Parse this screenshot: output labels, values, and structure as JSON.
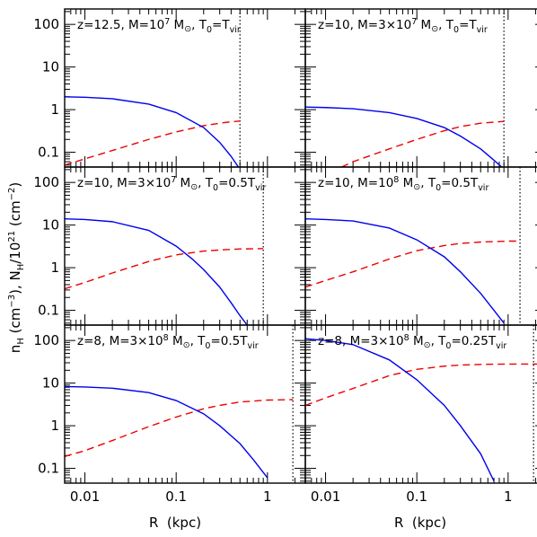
{
  "chart_data": {
    "type": "line",
    "layout": "3 rows x 2 columns, shared axes",
    "xlabel": "R  (kpc)",
    "ylabel": "n_H (cm^-3), N_H/10^21 (cm^-2)",
    "xscale": "log",
    "yscale": "log",
    "xlim": [
      0.006,
      2.6
    ],
    "ylim": [
      0.045,
      230
    ],
    "xticks": [
      "0.01",
      "0.1",
      "1"
    ],
    "yticks": [
      "0.1",
      "1",
      "10",
      "100"
    ],
    "series_styles": [
      {
        "key": "nH",
        "color": "#0000ee",
        "style": "solid"
      },
      {
        "key": "NH",
        "color": "#ee0000",
        "style": "dashed"
      }
    ],
    "panels": [
      {
        "title": {
          "pre": "z=12.5, M=10",
          "sup": "7",
          "mid": " M",
          "post": ", T",
          "tsub": "0",
          "teq": "=T",
          "vsub": "vir"
        },
        "rvir": 0.5,
        "nH": {
          "x": [
            0.006,
            0.01,
            0.02,
            0.05,
            0.1,
            0.2,
            0.3,
            0.4,
            0.48
          ],
          "y": [
            2.0,
            1.95,
            1.8,
            1.35,
            0.85,
            0.38,
            0.17,
            0.08,
            0.045
          ]
        },
        "NH": {
          "x": [
            0.006,
            0.01,
            0.02,
            0.05,
            0.1,
            0.2,
            0.3,
            0.4,
            0.5
          ],
          "y": [
            0.05,
            0.07,
            0.11,
            0.2,
            0.3,
            0.42,
            0.48,
            0.52,
            0.54
          ]
        }
      },
      {
        "title": {
          "pre": "z=10, M=3×10",
          "sup": "7",
          "mid": " M",
          "post": ", T",
          "tsub": "0",
          "teq": "=T",
          "vsub": "vir"
        },
        "rvir": 0.9,
        "nH": {
          "x": [
            0.006,
            0.01,
            0.02,
            0.05,
            0.1,
            0.2,
            0.3,
            0.5,
            0.7,
            0.85
          ],
          "y": [
            1.15,
            1.12,
            1.05,
            0.85,
            0.62,
            0.38,
            0.24,
            0.12,
            0.065,
            0.045
          ]
        },
        "NH": {
          "x": [
            0.015,
            0.02,
            0.05,
            0.1,
            0.2,
            0.3,
            0.5,
            0.9
          ],
          "y": [
            0.045,
            0.06,
            0.12,
            0.2,
            0.32,
            0.4,
            0.48,
            0.53
          ]
        }
      },
      {
        "title": {
          "pre": "z=10, M=3×10",
          "sup": "7",
          "mid": " M",
          "post": ", T",
          "tsub": "0",
          "teq": "=0.5T",
          "vsub": "vir"
        },
        "rvir": 0.9,
        "nH": {
          "x": [
            0.006,
            0.01,
            0.02,
            0.05,
            0.1,
            0.15,
            0.2,
            0.3,
            0.4,
            0.5,
            0.6
          ],
          "y": [
            14,
            13.5,
            12,
            7.5,
            3.2,
            1.6,
            0.9,
            0.35,
            0.15,
            0.075,
            0.045
          ]
        },
        "NH": {
          "x": [
            0.006,
            0.01,
            0.02,
            0.05,
            0.1,
            0.2,
            0.3,
            0.5,
            0.9
          ],
          "y": [
            0.32,
            0.45,
            0.75,
            1.4,
            2.0,
            2.45,
            2.6,
            2.75,
            2.8
          ]
        }
      },
      {
        "title": {
          "pre": "z=10, M=10",
          "sup": "8",
          "mid": " M",
          "post": ", T",
          "tsub": "0",
          "teq": "=0.5T",
          "vsub": "vir"
        },
        "rvir": 1.35,
        "nH": {
          "x": [
            0.006,
            0.01,
            0.02,
            0.05,
            0.1,
            0.2,
            0.3,
            0.5,
            0.7,
            0.9
          ],
          "y": [
            14,
            13.5,
            12.5,
            8.5,
            4.5,
            1.8,
            0.8,
            0.25,
            0.1,
            0.05
          ]
        },
        "NH": {
          "x": [
            0.006,
            0.01,
            0.02,
            0.05,
            0.1,
            0.2,
            0.3,
            0.5,
            1.0,
            1.35
          ],
          "y": [
            0.35,
            0.5,
            0.8,
            1.6,
            2.5,
            3.3,
            3.7,
            4.0,
            4.2,
            4.2
          ]
        }
      },
      {
        "title": {
          "pre": "z=8, M=3×10",
          "sup": "8",
          "mid": " M",
          "post": ", T",
          "tsub": "0",
          "teq": "=0.5T",
          "vsub": "vir"
        },
        "rvir": 1.9,
        "nH": {
          "x": [
            0.006,
            0.01,
            0.02,
            0.05,
            0.1,
            0.2,
            0.3,
            0.5,
            0.7,
            1.0
          ],
          "y": [
            8.3,
            8.1,
            7.6,
            6.0,
            3.9,
            1.9,
            1.0,
            0.38,
            0.16,
            0.06
          ]
        },
        "NH": {
          "x": [
            0.006,
            0.01,
            0.02,
            0.05,
            0.1,
            0.2,
            0.3,
            0.5,
            1.0,
            1.9
          ],
          "y": [
            0.19,
            0.26,
            0.45,
            0.95,
            1.6,
            2.5,
            3.0,
            3.6,
            4.0,
            4.1
          ]
        }
      },
      {
        "title": {
          "pre": "z=8, M=3×10",
          "sup": "8",
          "mid": " M",
          "post": ", T",
          "tsub": "0",
          "teq": "=0.25T",
          "vsub": "vir"
        },
        "rvir": 1.9,
        "nH": {
          "x": [
            0.006,
            0.01,
            0.02,
            0.05,
            0.1,
            0.2,
            0.3,
            0.5,
            0.7
          ],
          "y": [
            110,
            100,
            80,
            35,
            12,
            3,
            1.0,
            0.22,
            0.05
          ]
        },
        "NH": {
          "x": [
            0.006,
            0.01,
            0.02,
            0.05,
            0.1,
            0.2,
            0.3,
            0.5,
            1.0,
            1.9,
            2.6
          ],
          "y": [
            3.0,
            4.5,
            7.5,
            15,
            21,
            25,
            26.5,
            27.5,
            28,
            28,
            28
          ]
        }
      }
    ]
  }
}
